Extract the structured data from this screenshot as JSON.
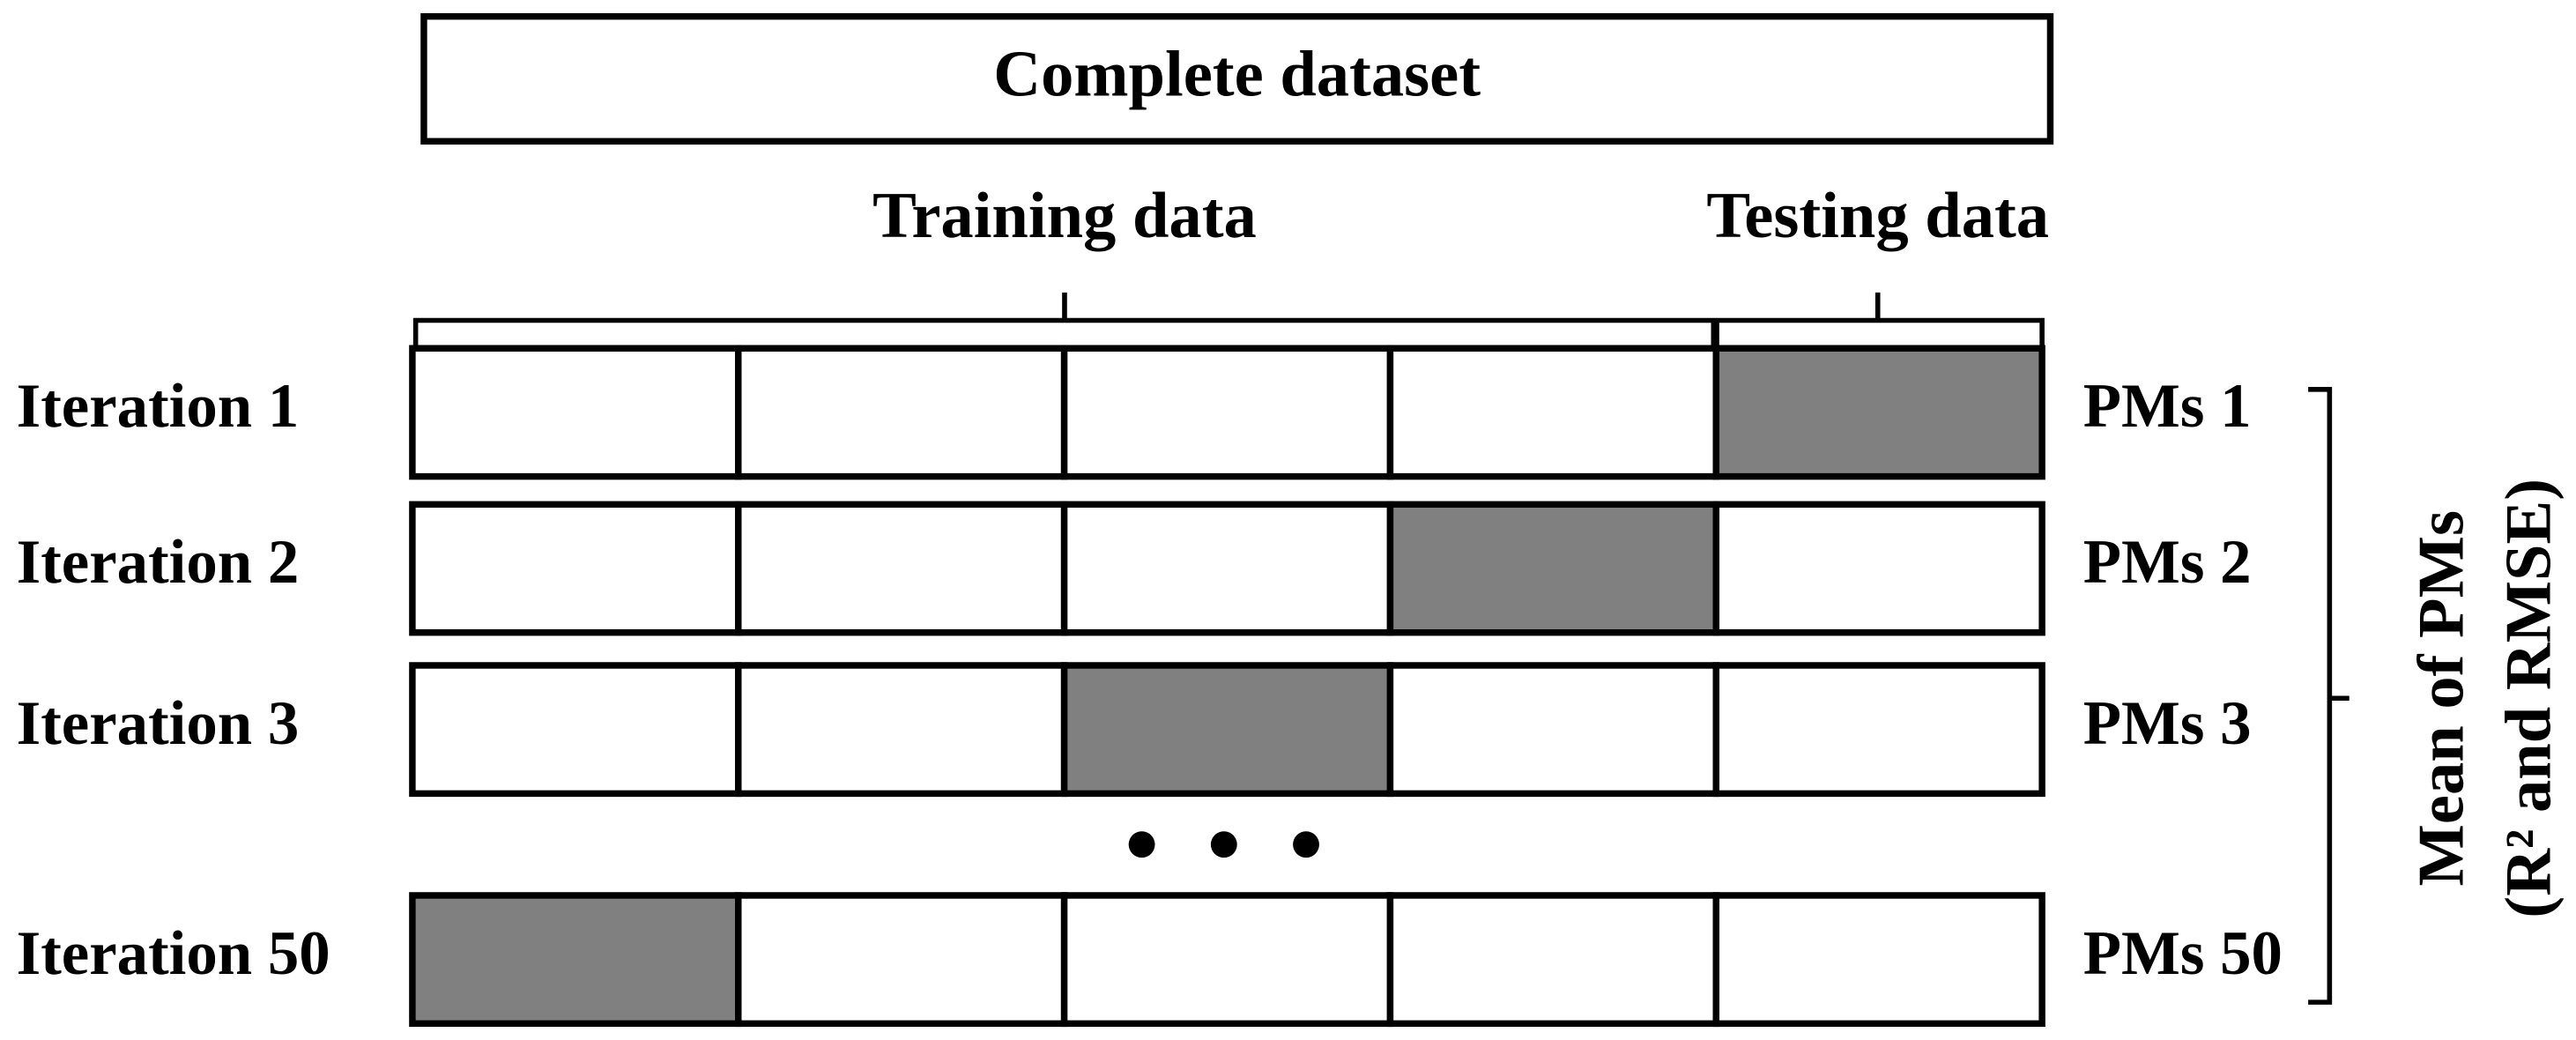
{
  "header": {
    "title": "Complete dataset"
  },
  "split": {
    "training": "Training data",
    "testing": "Testing data"
  },
  "folds": 5,
  "rows": [
    {
      "label": "Iteration 1",
      "result": "PMs 1",
      "shaded_fold": 5
    },
    {
      "label": "Iteration 2",
      "result": "PMs 2",
      "shaded_fold": 4
    },
    {
      "label": "Iteration 3",
      "result": "PMs 3",
      "shaded_fold": 3
    },
    {
      "label": "Iteration 50",
      "result": "PMs 50",
      "shaded_fold": 1
    }
  ],
  "summary": {
    "line1": "Mean of PMs",
    "line2": "(R² and RMSE)"
  }
}
